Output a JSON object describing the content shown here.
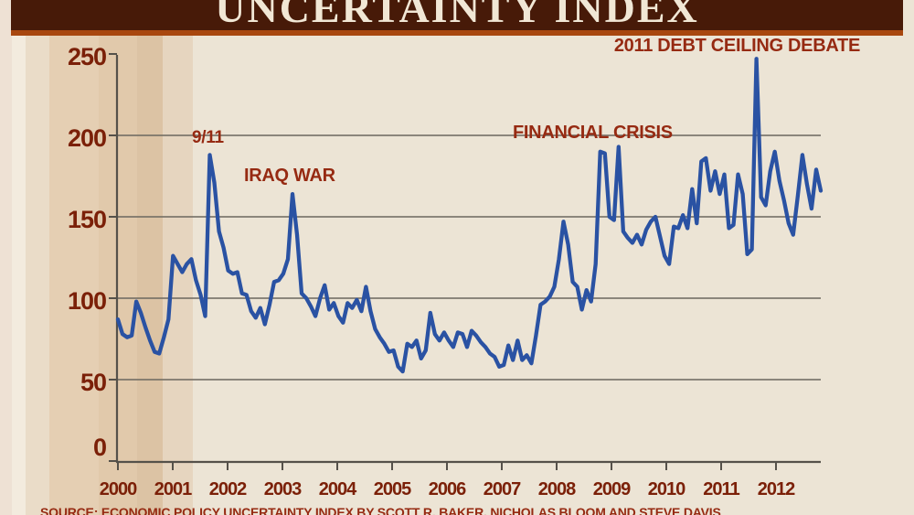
{
  "header": {
    "title": "UNCERTAINTY INDEX"
  },
  "source": "SOURCE: ECONOMIC POLICY UNCERTAINTY INDEX BY SCOTT R. BAKER, NICHOLAS BLOOM AND STEVE DAVIS",
  "colors": {
    "banner_bg": "#471a08",
    "banner_text": "#f1e7d5",
    "accent_strip": "#a8470f",
    "line": "#2a52a3",
    "axis_label": "#7b2008",
    "annotation": "#962a12",
    "grid": "#6b675f",
    "axis": "#55514a",
    "background": "#ece4d5"
  },
  "chart_data": {
    "type": "line",
    "title": "UNCERTAINTY INDEX",
    "xlabel": "",
    "ylabel": "",
    "x_start": "2000-01",
    "x_end": "2012-10",
    "frequency": "monthly",
    "ylim": [
      0,
      250
    ],
    "y_ticks": [
      0,
      50,
      100,
      150,
      200,
      250
    ],
    "gridlines": [
      50,
      100,
      150,
      200
    ],
    "grid_on": true,
    "legend": "none",
    "x_tick_labels": [
      "2000",
      "2001",
      "2002",
      "2003",
      "2004",
      "2005",
      "2006",
      "2007",
      "2008",
      "2009",
      "2010",
      "2011",
      "2012"
    ],
    "annotations": [
      {
        "text": "9/11",
        "points_to": "2001-09",
        "peak_value": 188
      },
      {
        "text": "IRAQ WAR",
        "points_to": "2003-03",
        "peak_value": 164
      },
      {
        "text": "FINANCIAL CRISIS",
        "points_to": "2008-10",
        "peak_value": 190
      },
      {
        "text": "2011 DEBT CEILING DEBATE",
        "points_to": "2011-08",
        "peak_value": 247
      }
    ],
    "series": [
      {
        "name": "Economic Policy Uncertainty Index",
        "values": [
          87,
          78,
          76,
          77,
          98,
          91,
          82,
          74,
          67,
          66,
          76,
          87,
          126,
          121,
          116,
          121,
          124,
          111,
          102,
          89,
          188,
          171,
          141,
          131,
          117,
          115,
          116,
          103,
          102,
          92,
          88,
          94,
          84,
          96,
          110,
          111,
          115,
          124,
          164,
          139,
          103,
          100,
          95,
          89,
          100,
          108,
          93,
          97,
          89,
          85,
          97,
          94,
          99,
          92,
          107,
          92,
          81,
          76,
          72,
          67,
          68,
          58,
          55,
          72,
          70,
          74,
          63,
          68,
          91,
          78,
          74,
          79,
          74,
          70,
          79,
          78,
          70,
          80,
          77,
          73,
          70,
          66,
          64,
          58,
          59,
          71,
          62,
          74,
          62,
          65,
          60,
          77,
          96,
          98,
          101,
          107,
          124,
          147,
          133,
          110,
          107,
          93,
          105,
          98,
          121,
          190,
          189,
          150,
          148,
          193,
          141,
          137,
          134,
          139,
          133,
          142,
          147,
          150,
          138,
          126,
          121,
          144,
          143,
          151,
          143,
          167,
          146,
          184,
          186,
          166,
          178,
          164,
          176,
          143,
          145,
          176,
          164,
          127,
          130,
          247,
          162,
          157,
          178,
          190,
          172,
          160,
          146,
          139,
          163,
          188,
          170,
          155,
          179,
          166
        ]
      }
    ]
  }
}
